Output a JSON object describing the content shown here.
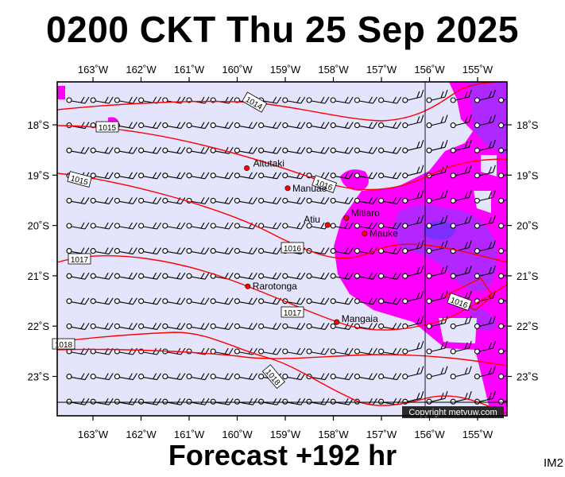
{
  "title": "0200 CKT Thu 25 Sep 2025",
  "footer": "Forecast +192 hr",
  "corner_label": "IM2",
  "copyright": "Copyright metvuw.com",
  "axes": {
    "lon_labels": [
      "163˚W",
      "162˚W",
      "161˚W",
      "160˚W",
      "159˚W",
      "158˚W",
      "157˚W",
      "156˚W",
      "155˚W"
    ],
    "lat_labels": [
      "18˚S",
      "19˚S",
      "20˚S",
      "21˚S",
      "22˚S",
      "23˚S"
    ]
  },
  "places": [
    {
      "name": "Aitutaki",
      "lon": -159.8,
      "lat": -18.86
    },
    {
      "name": "Manuae",
      "lon": -158.95,
      "lat": -19.26
    },
    {
      "name": "Atiu",
      "lon": -158.12,
      "lat": -19.99
    },
    {
      "name": "Mitiaro",
      "lon": -157.73,
      "lat": -19.85
    },
    {
      "name": "Mauke",
      "lon": -157.35,
      "lat": -20.16
    },
    {
      "name": "Rarotonga",
      "lon": -159.78,
      "lat": -21.21
    },
    {
      "name": "Mangaia",
      "lon": -157.93,
      "lat": -21.92
    }
  ],
  "isobar_labels": [
    "1014",
    "1015",
    "1016",
    "1015",
    "1016",
    "1017",
    "1016",
    "1017",
    "1018",
    "1018"
  ],
  "colors": {
    "background": "#e4e4fc",
    "rain_light": "#ff00ff",
    "rain_heavy": "#9933ff",
    "isobar": "#ff0000",
    "place_dot": "#ff0000"
  }
}
